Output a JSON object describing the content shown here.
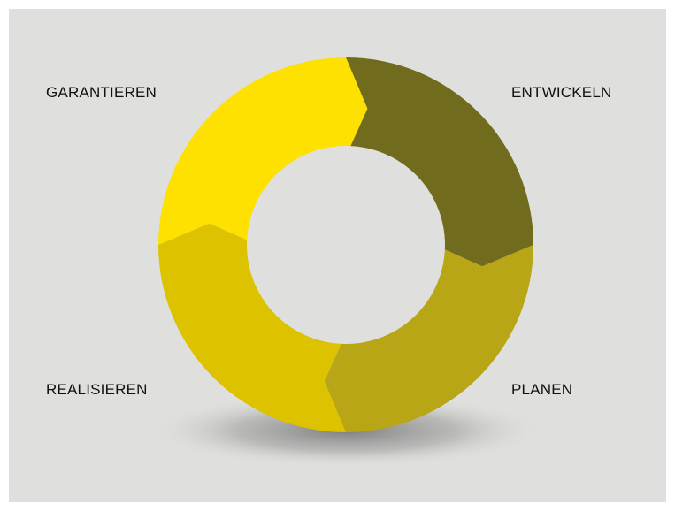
{
  "stages": [
    {
      "label": "GARANTIEREN",
      "color": "#fee100"
    },
    {
      "label": "ENTWICKELN",
      "color": "#716b1d"
    },
    {
      "label": "PLANEN",
      "color": "#b8a616"
    },
    {
      "label": "REALISIEREN",
      "color": "#ddc200"
    }
  ],
  "colors": {
    "background": "#dfdfdd"
  }
}
